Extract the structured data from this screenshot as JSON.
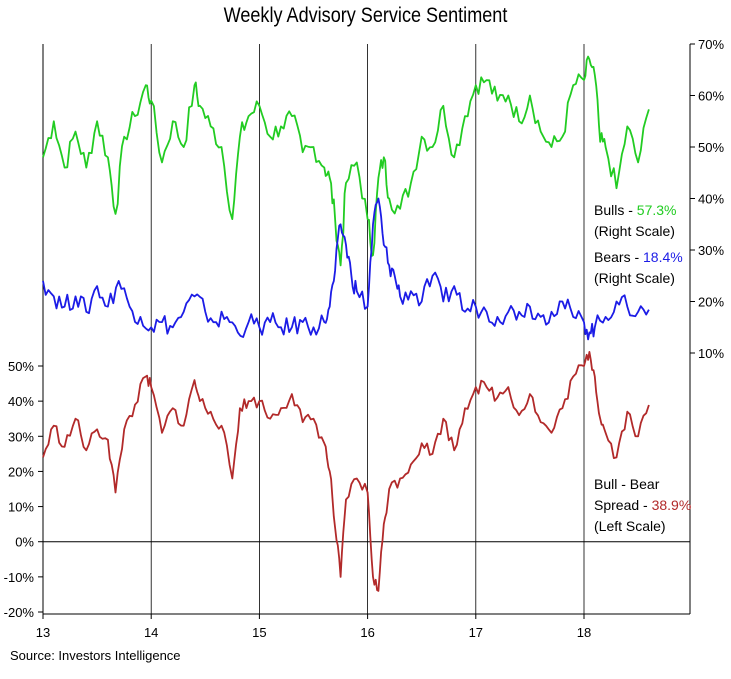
{
  "chart_data": {
    "type": "line",
    "title": "Weekly Advisory Service Sentiment",
    "source": "Source: Investors Intelligence",
    "x_ticks": [
      "13",
      "14",
      "15",
      "16",
      "17",
      "18"
    ],
    "x_range": [
      2013.0,
      2019.0
    ],
    "right_axis": {
      "ticks": [
        "10%",
        "20%",
        "30%",
        "40%",
        "50%",
        "60%",
        "70%"
      ],
      "range": [
        10,
        70
      ]
    },
    "left_axis": {
      "ticks": [
        "-20%",
        "-10%",
        "0%",
        "10%",
        "20%",
        "30%",
        "40%",
        "50%"
      ],
      "range": [
        -20,
        50
      ]
    },
    "grid": "vertical lines at year ticks",
    "series": [
      {
        "name": "Bulls",
        "scale": "right",
        "color": "#22cc22",
        "x": [
          2013.0,
          2013.1,
          2013.2,
          2013.3,
          2013.4,
          2013.5,
          2013.6,
          2013.67,
          2013.75,
          2013.85,
          2013.95,
          2014.0,
          2014.1,
          2014.2,
          2014.3,
          2014.4,
          2014.45,
          2014.55,
          2014.65,
          2014.75,
          2014.82,
          2014.9,
          2015.0,
          2015.1,
          2015.2,
          2015.3,
          2015.4,
          2015.5,
          2015.6,
          2015.65,
          2015.7,
          2015.75,
          2015.8,
          2015.9,
          2016.0,
          2016.05,
          2016.1,
          2016.15,
          2016.2,
          2016.3,
          2016.4,
          2016.5,
          2016.6,
          2016.7,
          2016.8,
          2016.9,
          2017.0,
          2017.1,
          2017.2,
          2017.3,
          2017.4,
          2017.5,
          2017.6,
          2017.7,
          2017.8,
          2017.9,
          2018.0,
          2018.05,
          2018.1,
          2018.15,
          2018.2,
          2018.3,
          2018.4,
          2018.5,
          2018.6
        ],
        "values": [
          48,
          55,
          46,
          53,
          46,
          55,
          48,
          37,
          52,
          56,
          62,
          59,
          47,
          55,
          50,
          62,
          58,
          54,
          50,
          36,
          52,
          56,
          58,
          52,
          54,
          56,
          49,
          50,
          46,
          44,
          36,
          27,
          43,
          47,
          36,
          29,
          44,
          48,
          40,
          38,
          43,
          52,
          50,
          58,
          48,
          56,
          62,
          63,
          59,
          60,
          55,
          60,
          53,
          50,
          52,
          62,
          63,
          67,
          64,
          51,
          50,
          42,
          54,
          47,
          57.3
        ]
      },
      {
        "name": "Bears",
        "scale": "right",
        "color": "#1c1ce6",
        "x": [
          2013.0,
          2013.1,
          2013.2,
          2013.3,
          2013.4,
          2013.5,
          2013.6,
          2013.7,
          2013.8,
          2013.9,
          2014.0,
          2014.1,
          2014.2,
          2014.3,
          2014.4,
          2014.5,
          2014.6,
          2014.7,
          2014.8,
          2014.9,
          2015.0,
          2015.1,
          2015.2,
          2015.3,
          2015.4,
          2015.5,
          2015.6,
          2015.65,
          2015.7,
          2015.75,
          2015.8,
          2015.85,
          2015.9,
          2016.0,
          2016.05,
          2016.1,
          2016.15,
          2016.2,
          2016.25,
          2016.3,
          2016.4,
          2016.5,
          2016.6,
          2016.7,
          2016.8,
          2016.9,
          2017.0,
          2017.1,
          2017.2,
          2017.3,
          2017.4,
          2017.5,
          2017.6,
          2017.7,
          2017.8,
          2017.9,
          2018.0,
          2018.05,
          2018.1,
          2018.2,
          2018.3,
          2018.4,
          2018.5,
          2018.6
        ],
        "values": [
          24,
          21,
          19,
          21,
          18,
          23,
          19,
          24,
          19,
          17,
          15,
          16,
          15,
          18,
          21,
          18,
          16,
          17,
          14,
          16,
          15,
          16,
          15,
          15,
          16,
          15,
          16,
          19,
          26,
          35,
          31,
          25,
          22,
          19,
          35,
          40,
          31,
          27,
          25,
          21,
          22,
          20,
          25,
          20,
          23,
          18,
          19,
          18,
          17,
          18,
          18,
          19,
          17,
          18,
          20,
          17,
          16,
          14,
          15,
          17,
          20,
          19,
          18,
          18.4
        ]
      },
      {
        "name": "Bull - Bear Spread",
        "scale": "left",
        "color": "#b22a2a",
        "x": [
          2013.0,
          2013.1,
          2013.2,
          2013.3,
          2013.4,
          2013.5,
          2013.6,
          2013.67,
          2013.75,
          2013.85,
          2013.95,
          2014.0,
          2014.1,
          2014.2,
          2014.3,
          2014.4,
          2014.45,
          2014.55,
          2014.65,
          2014.75,
          2014.82,
          2014.9,
          2015.0,
          2015.1,
          2015.2,
          2015.3,
          2015.4,
          2015.5,
          2015.6,
          2015.65,
          2015.7,
          2015.75,
          2015.8,
          2015.9,
          2016.0,
          2016.05,
          2016.1,
          2016.15,
          2016.2,
          2016.3,
          2016.4,
          2016.5,
          2016.6,
          2016.7,
          2016.8,
          2016.9,
          2017.0,
          2017.1,
          2017.2,
          2017.3,
          2017.4,
          2017.5,
          2017.6,
          2017.7,
          2017.8,
          2017.9,
          2018.0,
          2018.05,
          2018.1,
          2018.15,
          2018.2,
          2018.3,
          2018.4,
          2018.5,
          2018.6
        ],
        "values": [
          24,
          33,
          27,
          35,
          26,
          32,
          29,
          14,
          32,
          39,
          47,
          44,
          31,
          38,
          33,
          46,
          40,
          37,
          33,
          18,
          38,
          40,
          40,
          35,
          38,
          42,
          34,
          35,
          28,
          20,
          4,
          -10,
          12,
          18,
          14,
          -10,
          -14,
          5,
          15,
          18,
          22,
          28,
          25,
          35,
          26,
          38,
          44,
          44,
          41,
          44,
          36,
          42,
          34,
          31,
          38,
          47,
          50,
          54,
          47,
          35,
          31,
          24,
          37,
          30,
          38.9
        ]
      }
    ],
    "annotations": {
      "bulls": {
        "label": "Bulls - ",
        "value": "57.3%",
        "scale": "(Right Scale)"
      },
      "bears": {
        "label": "Bears - ",
        "value": "18.4%",
        "scale": "(Right Scale)"
      },
      "spread": {
        "label1": "Bull - Bear",
        "label2": "Spread - ",
        "value": "38.9%",
        "scale": "(Left Scale)"
      }
    }
  }
}
